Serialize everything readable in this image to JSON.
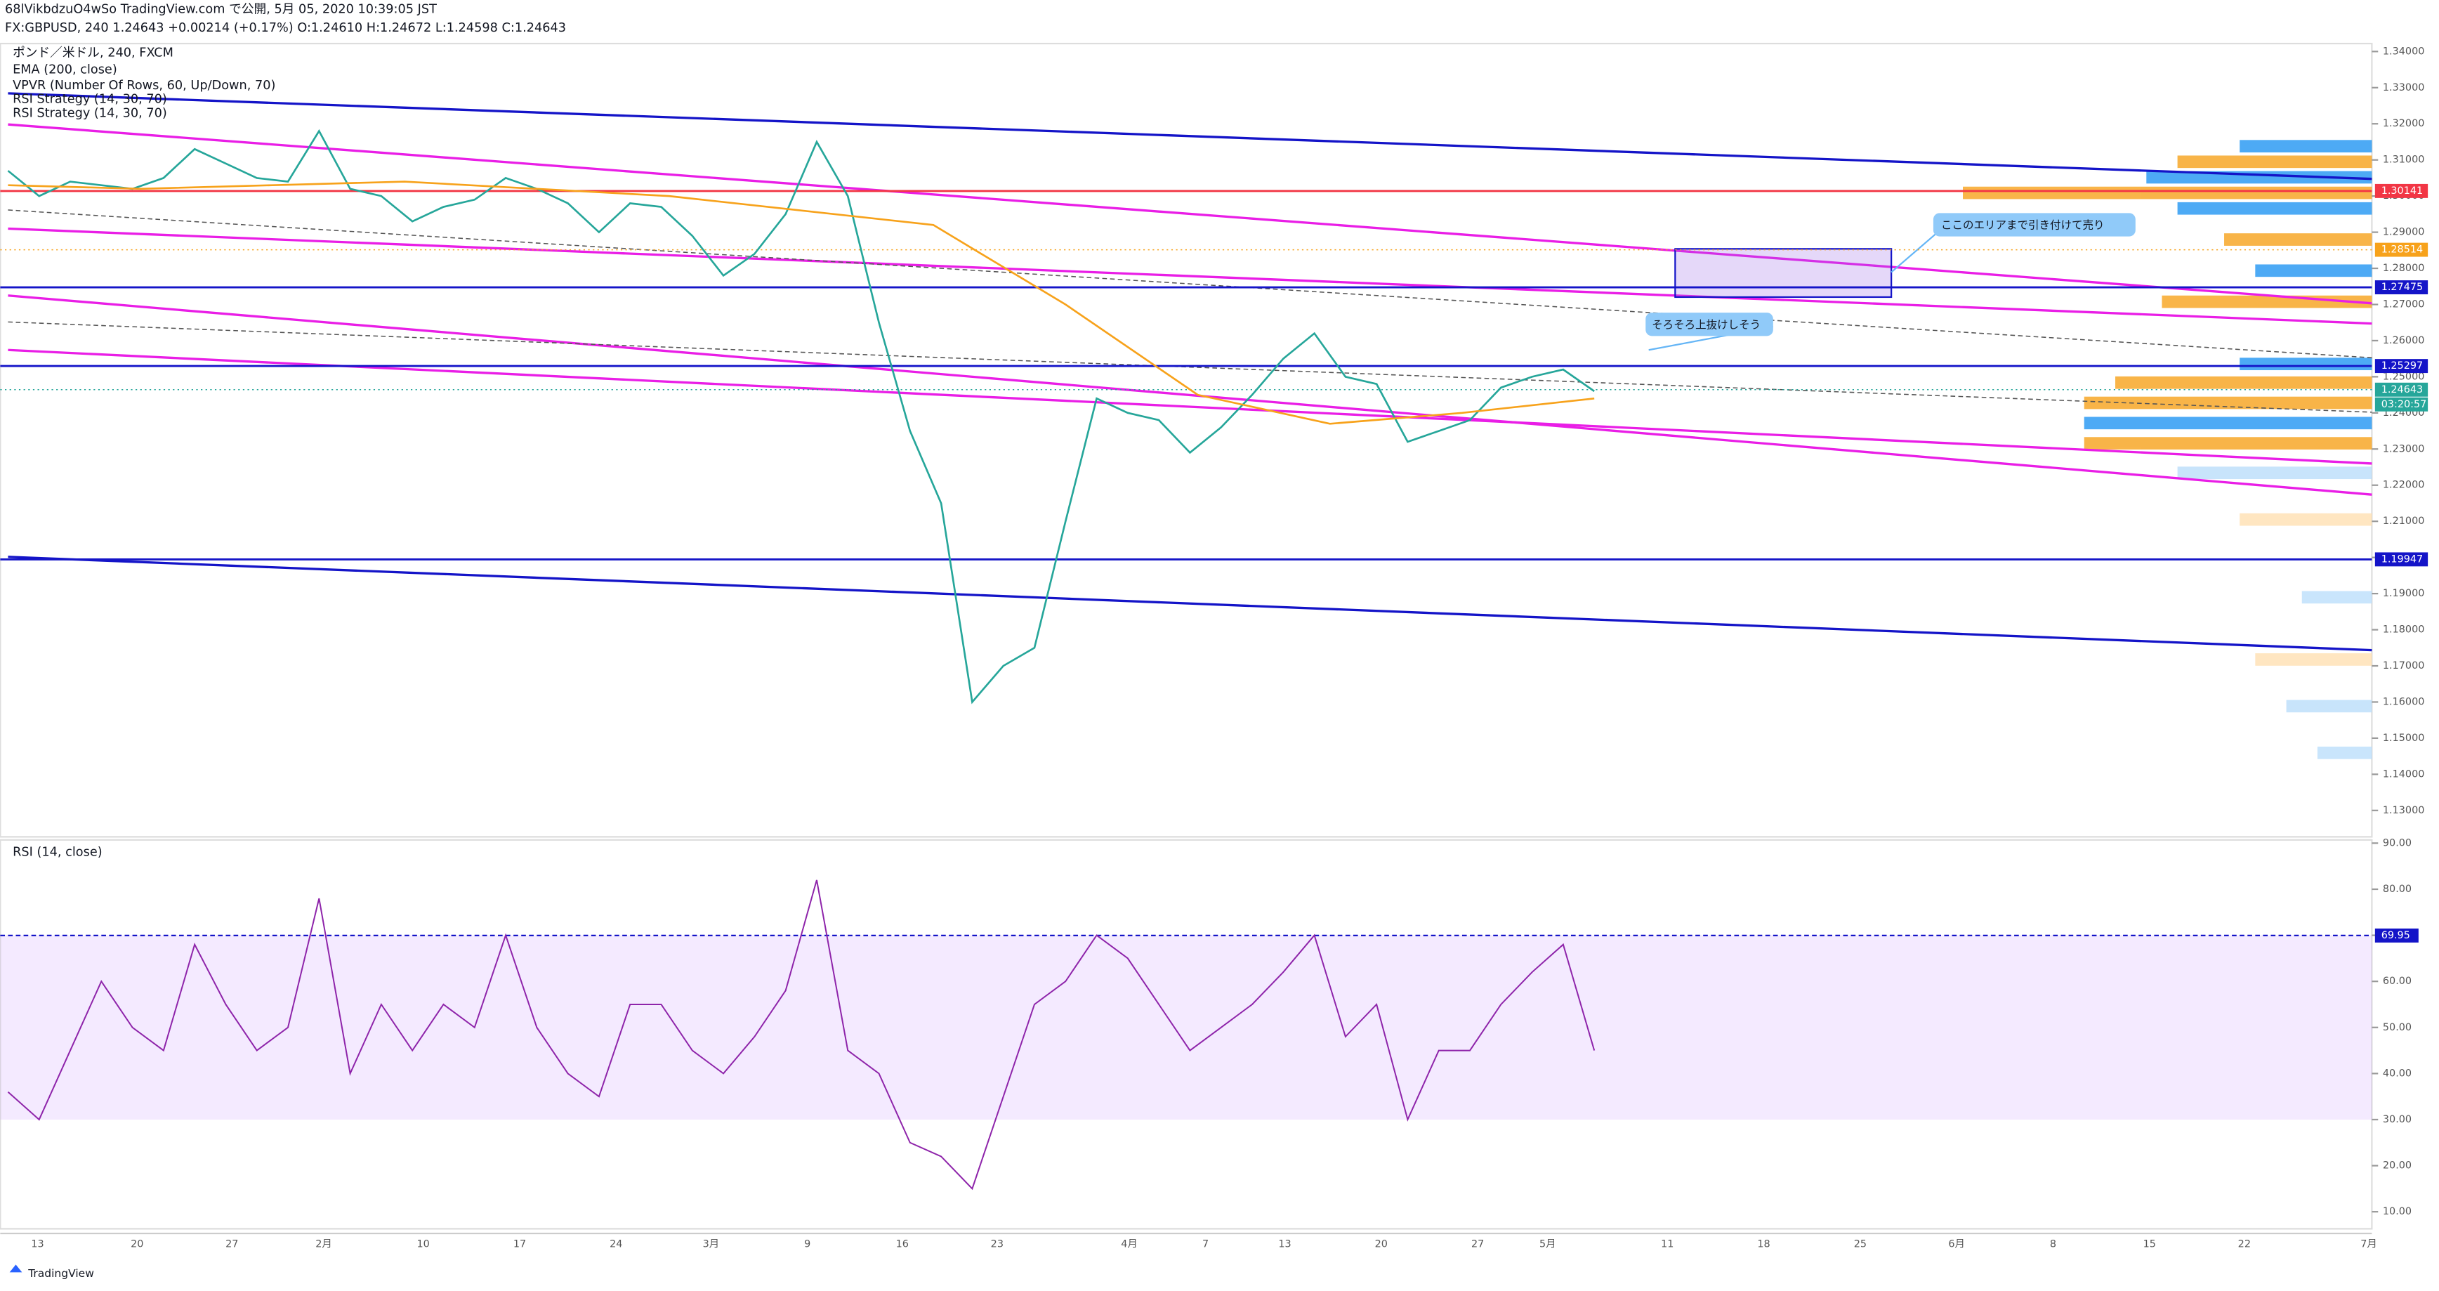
{
  "header": {
    "line1": "68lVikbdzuO4wSo TradingView.com で公開, 5月 05, 2020 10:39:05 JST",
    "line2": "FX:GBPUSD, 240 1.24643 +0.00214 (+0.17%) O:1.24610 H:1.24672 L:1.24598 C:1.24643"
  },
  "legend": [
    "ポンド／米ドル, 240, FXCM",
    "EMA (200, close)",
    "VPVR (Number Of Rows, 60, Up/Down, 70)",
    "RSI Strategy (14, 30, 70)",
    "RSI Strategy (14, 30, 70)"
  ],
  "annotations": [
    "ここのエリアまで引き付けて売り",
    "そろそろ上抜けしそう"
  ],
  "timer": "03:20:57",
  "footer": "TradingView",
  "chart": {
    "ylim": [
      1.1227,
      1.3422
    ],
    "yticks": [
      {
        "value": 1.34,
        "label": "1.34000"
      },
      {
        "value": 1.33,
        "label": "1.33000"
      },
      {
        "value": 1.32,
        "label": "1.32000"
      },
      {
        "value": 1.31,
        "label": "1.31000"
      },
      {
        "value": 1.3,
        "label": "1.30000"
      },
      {
        "value": 1.29,
        "label": "1.29000"
      },
      {
        "value": 1.28,
        "label": "1.28000"
      },
      {
        "value": 1.27,
        "label": "1.27000"
      },
      {
        "value": 1.26,
        "label": "1.26000"
      },
      {
        "value": 1.25,
        "label": "1.25000"
      },
      {
        "value": 1.24,
        "label": "1.24000"
      },
      {
        "value": 1.23,
        "label": "1.23000"
      },
      {
        "value": 1.22,
        "label": "1.22000"
      },
      {
        "value": 1.21,
        "label": "1.21000"
      },
      {
        "value": 1.2,
        "label": "1.20000"
      },
      {
        "value": 1.19,
        "label": "1.19000"
      },
      {
        "value": 1.18,
        "label": "1.18000"
      },
      {
        "value": 1.17,
        "label": "1.17000"
      },
      {
        "value": 1.16,
        "label": "1.16000"
      },
      {
        "value": 1.15,
        "label": "1.15000"
      },
      {
        "value": 1.14,
        "label": "1.14000"
      },
      {
        "value": 1.13,
        "label": "1.13000"
      }
    ],
    "price_tags": [
      {
        "value": 1.30141,
        "color": "#f23645"
      },
      {
        "value": 1.28514,
        "color": "#f7a21b"
      },
      {
        "value": 1.27475,
        "color": "#1414c8"
      },
      {
        "value": 1.25297,
        "color": "#1414c8"
      },
      {
        "value": 1.24643,
        "color": "#26a69a"
      },
      {
        "value": 1.19947,
        "color": "#1414c8"
      }
    ],
    "close": [
      1.307,
      1.3,
      1.304,
      1.303,
      1.302,
      1.305,
      1.313,
      1.309,
      1.305,
      1.304,
      1.318,
      1.302,
      1.3,
      1.293,
      1.297,
      1.299,
      1.305,
      1.302,
      1.298,
      1.29,
      1.298,
      1.297,
      1.289,
      1.278,
      1.284,
      1.295,
      1.315,
      1.3,
      1.265,
      1.235,
      1.215,
      1.16,
      1.17,
      1.175,
      1.21,
      1.244,
      1.24,
      1.238,
      1.229,
      1.236,
      1.245,
      1.255,
      1.262,
      1.25,
      1.248,
      1.232,
      1.235,
      1.238,
      1.247,
      1.25,
      1.252,
      1.246
    ],
    "ema": [
      1.303,
      1.302,
      1.303,
      1.304,
      1.302,
      1.3,
      1.296,
      1.292,
      1.27,
      1.245,
      1.237,
      1.24,
      1.244
    ]
  },
  "rsi": {
    "title": "RSI (14, close)",
    "ylim": [
      6.3,
      90.7
    ],
    "yticks": [
      {
        "value": 90,
        "label": "90.00"
      },
      {
        "value": 80,
        "label": "80.00"
      },
      {
        "value": 70,
        "label": "70.00"
      },
      {
        "value": 60,
        "label": "60.00"
      },
      {
        "value": 50,
        "label": "50.00"
      },
      {
        "value": 40,
        "label": "40.00"
      },
      {
        "value": 30,
        "label": "30.00"
      },
      {
        "value": 20,
        "label": "20.00"
      },
      {
        "value": 10,
        "label": "10.00"
      }
    ],
    "band": [
      30,
      70
    ],
    "tag": 69.95,
    "values": [
      36,
      30,
      45,
      60,
      50,
      45,
      68,
      55,
      45,
      50,
      78,
      40,
      55,
      45,
      55,
      50,
      70,
      50,
      40,
      35,
      55,
      55,
      45,
      40,
      48,
      58,
      82,
      45,
      40,
      25,
      22,
      15,
      35,
      55,
      60,
      70,
      65,
      55,
      45,
      50,
      55,
      62,
      70,
      48,
      55,
      30,
      45,
      45,
      55,
      62,
      68,
      45
    ]
  },
  "dates": [
    "13",
    "20",
    "27",
    "2月",
    "10",
    "17",
    "24",
    "3月",
    "9",
    "16",
    "23",
    "4月",
    "7",
    "13",
    "20",
    "27",
    "5月",
    "11",
    "18",
    "25",
    "6月",
    "8",
    "15",
    "22",
    "7月"
  ]
}
